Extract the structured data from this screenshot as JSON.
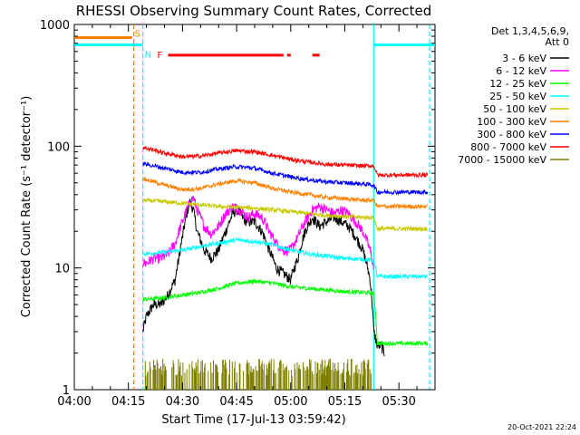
{
  "chart_data": {
    "type": "line",
    "title": "RHESSI Observing Summary Count Rates, Corrected",
    "xlabel": "Start Time (17-Jul-13 03:59:42)",
    "ylabel": "Corrected Count Rate (s⁻¹ detector⁻¹)",
    "y_scale": "log",
    "ylim": [
      1,
      1000
    ],
    "xlim_minutes": [
      0,
      100
    ],
    "x_tick_labels": [
      "04:00",
      "04:15",
      "04:30",
      "04:45",
      "05:00",
      "05:15",
      "05:30"
    ],
    "x_tick_minutes": [
      0,
      15,
      30,
      45,
      60,
      75,
      90
    ],
    "y_tick_labels": [
      "1",
      "10",
      "100",
      "1000"
    ],
    "y_tick_values": [
      1,
      10,
      100,
      1000
    ],
    "legend": {
      "header_lines": [
        "Det 1,3,4,5,6,9,",
        "Att 0"
      ],
      "placement": "right"
    },
    "timestamp": "20-Oct-2021 22:24",
    "flags": [
      {
        "label": "S",
        "color": "#ff8000",
        "y_value": 780,
        "segments": [
          [
            0,
            16
          ]
        ]
      },
      {
        "label": "N",
        "color": "#00ffff",
        "y_value": 680,
        "segments": [
          [
            0,
            19
          ],
          [
            83,
            100
          ]
        ]
      },
      {
        "label": "F",
        "color": "#ff0000",
        "y_value": 560,
        "segments": [
          [
            26,
            58
          ],
          [
            59,
            60
          ],
          [
            66,
            68
          ]
        ]
      }
    ],
    "vertical_lines": [
      {
        "minute": 16.5,
        "color": "#ff8000",
        "style": "dashed"
      },
      {
        "minute": 19.0,
        "color": "#00ffff",
        "style": "dashed"
      },
      {
        "minute": 83.0,
        "color": "#00ffff",
        "style": "solid"
      },
      {
        "minute": 98.5,
        "color": "#00ffff",
        "style": "dashed"
      }
    ],
    "series": [
      {
        "name": "3 - 6 keV",
        "color": "#000000",
        "x": [
          19,
          20,
          22,
          24,
          26,
          28,
          29,
          30,
          31,
          32,
          33,
          34,
          36,
          38,
          40,
          42,
          44,
          45,
          46,
          47,
          48,
          50,
          52,
          54,
          55,
          56,
          58,
          60,
          62,
          64,
          66,
          67,
          68,
          70,
          72,
          74,
          76,
          78,
          80,
          82,
          83,
          84,
          85,
          86
        ],
        "y": [
          3,
          4,
          5,
          5,
          6,
          8,
          12,
          18,
          26,
          35,
          30,
          20,
          14,
          12,
          14,
          20,
          28,
          30,
          28,
          25,
          24,
          24,
          20,
          14,
          12,
          10,
          9,
          8,
          12,
          20,
          26,
          24,
          22,
          24,
          26,
          24,
          22,
          18,
          14,
          8,
          3,
          2.3,
          2.3,
          2
        ]
      },
      {
        "name": "6 - 12 keV",
        "color": "#ff00ff",
        "x": [
          19,
          20,
          22,
          24,
          26,
          28,
          30,
          32,
          33,
          34,
          36,
          38,
          40,
          42,
          44,
          46,
          48,
          50,
          52,
          54,
          56,
          58,
          60,
          62,
          64,
          66,
          68,
          70,
          72,
          74,
          76,
          78,
          80,
          82,
          83
        ],
        "y": [
          11,
          11,
          12,
          12,
          13,
          16,
          24,
          34,
          38,
          30,
          22,
          19,
          22,
          28,
          32,
          30,
          26,
          28,
          26,
          20,
          16,
          14,
          14,
          18,
          24,
          30,
          32,
          30,
          28,
          30,
          28,
          24,
          20,
          14,
          10
        ]
      },
      {
        "name": "12 - 25 keV",
        "color": "#00ff00",
        "x": [
          19,
          25,
          30,
          35,
          40,
          45,
          50,
          55,
          60,
          65,
          70,
          75,
          80,
          83,
          84,
          90,
          98
        ],
        "y": [
          5.5,
          5.7,
          6,
          6.3,
          6.8,
          7.5,
          7.8,
          7.5,
          7,
          6.8,
          6.6,
          6.4,
          6.3,
          6.2,
          2.4,
          2.4,
          2.4
        ]
      },
      {
        "name": "25 - 50 keV",
        "color": "#00ffff",
        "x": [
          19,
          25,
          30,
          35,
          40,
          45,
          50,
          55,
          60,
          65,
          70,
          75,
          80,
          83,
          84,
          90,
          98
        ],
        "y": [
          13,
          13.5,
          14,
          15,
          16,
          17,
          16.5,
          15.5,
          14,
          13,
          12.5,
          12,
          11.8,
          11.5,
          8.5,
          8.5,
          8.5
        ]
      },
      {
        "name": "50 - 100 keV",
        "color": "#c8c800",
        "x": [
          19,
          25,
          30,
          35,
          40,
          45,
          50,
          55,
          60,
          65,
          70,
          75,
          80,
          83,
          84,
          90,
          98
        ],
        "y": [
          36,
          35,
          34,
          33,
          32,
          31.5,
          31,
          30,
          29,
          28,
          27,
          26.5,
          26,
          26,
          21,
          21,
          21
        ]
      },
      {
        "name": "100 - 300 keV",
        "color": "#ff8000",
        "x": [
          19,
          25,
          30,
          35,
          40,
          45,
          50,
          55,
          60,
          65,
          70,
          75,
          80,
          83,
          84,
          90,
          98
        ],
        "y": [
          54,
          48,
          44,
          45,
          49,
          52,
          50,
          45,
          42,
          40,
          38,
          37,
          36,
          36,
          32,
          32,
          32
        ]
      },
      {
        "name": "300 - 800 keV",
        "color": "#0000ff",
        "x": [
          19,
          25,
          30,
          35,
          40,
          45,
          50,
          55,
          60,
          65,
          70,
          75,
          80,
          83,
          84,
          90,
          98
        ],
        "y": [
          72,
          66,
          61,
          61,
          65,
          68,
          66,
          60,
          56,
          53,
          51,
          50,
          49,
          48,
          42,
          42,
          42
        ]
      },
      {
        "name": "800 - 7000 keV",
        "color": "#ff0000",
        "x": [
          19,
          25,
          30,
          35,
          40,
          45,
          50,
          55,
          60,
          65,
          70,
          75,
          80,
          83,
          84,
          90,
          98
        ],
        "y": [
          98,
          88,
          82,
          83,
          88,
          92,
          90,
          84,
          78,
          74,
          71,
          70,
          69,
          69,
          58,
          58,
          58
        ]
      },
      {
        "name": "7000 - 15000 keV",
        "color": "#808000",
        "x": [
          19.5,
          20,
          30,
          40,
          45,
          50,
          55,
          60,
          65,
          70,
          75,
          80,
          83
        ],
        "y": [
          1.5,
          1,
          1.4,
          1.6,
          1.6,
          1.6,
          1.4,
          1.4,
          1.5,
          1.3,
          1.2,
          1.2,
          1.1
        ]
      }
    ]
  }
}
